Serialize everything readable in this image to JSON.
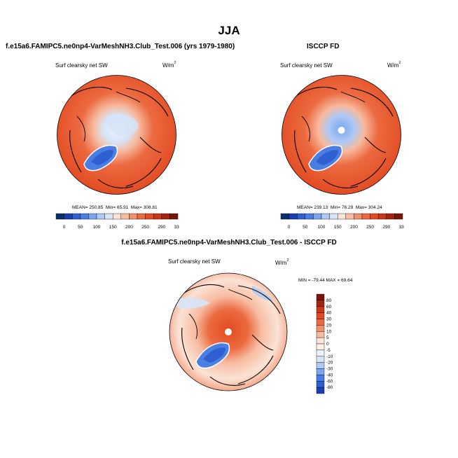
{
  "page": {
    "season": "JJA"
  },
  "colors": {
    "palette": [
      "#08306b",
      "#1c3fb0",
      "#2f5fd0",
      "#4a7ee3",
      "#7aa5ef",
      "#aec9f4",
      "#d6e4f8",
      "#fbe3d6",
      "#f7bba0",
      "#f2906b",
      "#ec6a40",
      "#e24a22",
      "#c9361a",
      "#a32410",
      "#7a1405"
    ],
    "diff_palette": [
      "#08306b",
      "#1c3fb0",
      "#2f5fd0",
      "#4a7ee3",
      "#7aa5ef",
      "#aec9f4",
      "#d6e4f8",
      "#eef3fb",
      "#fdf0e8",
      "#fbe3d6",
      "#f7bba0",
      "#f2906b",
      "#ec6a40",
      "#e24a22",
      "#c9361a",
      "#a32410",
      "#7a1405"
    ],
    "land": "#000000"
  },
  "panels": {
    "model": {
      "title": "f.e15a6.FAMIPC5.ne0np4-VarMeshNH3.Club_Test.006 (yrs 1979-1980)",
      "variable": "Surf clearsky net SW",
      "units": "W/m",
      "units_exp": "2",
      "mean_label": "MEAN= 250.85",
      "min_label": "Min=  65.91",
      "max_label": "Max= 308.81"
    },
    "obs": {
      "title": "ISCCP FD",
      "variable": "Surf clearsky net SW",
      "units": "W/m",
      "units_exp": "2",
      "mean_label": "MEAN= 239.13",
      "min_label": "Min=  76.29",
      "max_label": "Max= 304.24"
    },
    "diff": {
      "title": "f.e15a6.FAMIPC5.ne0np4-VarMeshNH3.Club_Test.006 - ISCCP FD",
      "variable": "Surf clearsky net SW",
      "units": "W/m",
      "units_exp": "2",
      "minmax_label": "MIN = -79.44 MAX =  69.64"
    }
  },
  "chart_data": [
    {
      "type": "heatmap",
      "title": "f.e15a6.FAMIPC5.ne0np4-VarMeshNH3.Club_Test.006 (yrs 1979-1980)",
      "subtitle": "Surf clearsky net SW",
      "units": "W/m2",
      "projection": "north polar stereographic",
      "colorbar_ticks": [
        "0",
        "50",
        "100",
        "150",
        "200",
        "250",
        "290",
        "330"
      ],
      "mean": 250.85,
      "min": 65.91,
      "max": 308.81
    },
    {
      "type": "heatmap",
      "title": "ISCCP FD",
      "subtitle": "Surf clearsky net SW",
      "units": "W/m2",
      "projection": "north polar stereographic",
      "colorbar_ticks": [
        "0",
        "50",
        "100",
        "150",
        "200",
        "250",
        "290",
        "330"
      ],
      "mean": 239.13,
      "min": 76.29,
      "max": 304.24
    },
    {
      "type": "heatmap",
      "title": "f.e15a6.FAMIPC5.ne0np4-VarMeshNH3.Club_Test.006 - ISCCP FD",
      "subtitle": "Surf clearsky net SW",
      "units": "W/m2",
      "projection": "north polar stereographic",
      "colorbar_ticks": [
        "80",
        "60",
        "40",
        "30",
        "20",
        "10",
        "5",
        "0",
        "-5",
        "-10",
        "-20",
        "-30",
        "-40",
        "-60",
        "-80"
      ],
      "min": -79.44,
      "max": 69.64
    }
  ]
}
